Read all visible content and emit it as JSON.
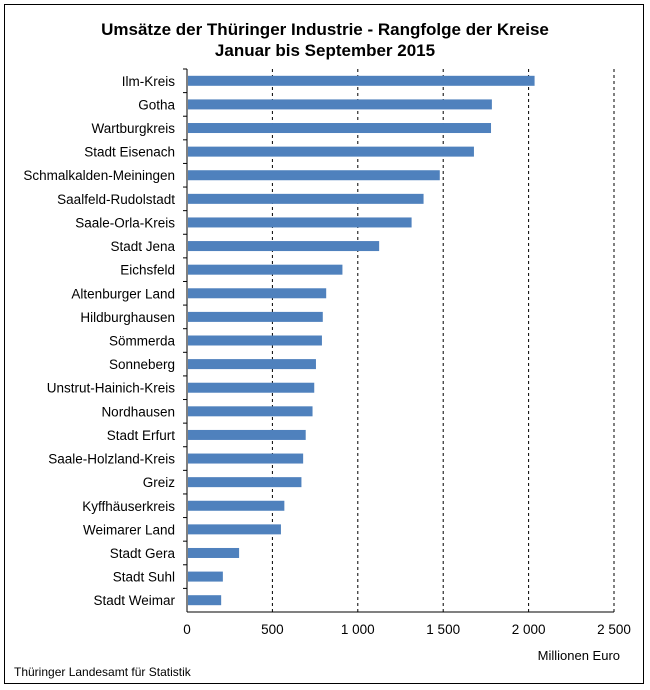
{
  "chart_data": {
    "type": "bar",
    "orientation": "horizontal",
    "title": "Umsätze der Thüringer Industrie - Rangfolge der Kreise",
    "subtitle": "Januar bis September 2015",
    "xlabel": "Millionen Euro",
    "ylabel": "",
    "xlim": [
      0,
      2500
    ],
    "xticks": [
      0,
      500,
      1000,
      1500,
      2000,
      2500
    ],
    "xtick_labels": [
      "0",
      "500",
      "1 000",
      "1 500",
      "2 000",
      "2 500"
    ],
    "grid": "vertical dashed",
    "bar_color": "#4f81bd",
    "categories": [
      "Ilm-Kreis",
      "Gotha",
      "Wartburgkreis",
      "Stadt Eisenach",
      "Schmalkalden-Meiningen",
      "Saalfeld-Rudolstadt",
      "Saale-Orla-Kreis",
      "Stadt Jena",
      "Eichsfeld",
      "Altenburger Land",
      "Hildburghausen",
      "Sömmerda",
      "Sonneberg",
      "Unstrut-Hainich-Kreis",
      "Nordhausen",
      "Stadt Erfurt",
      "Saale-Holzland-Kreis",
      "Greiz",
      "Kyffhäuserkreis",
      "Weimarer Land",
      "Stadt Gera",
      "Stadt Suhl",
      "Stadt Weimar"
    ],
    "values": [
      2035,
      1785,
      1780,
      1680,
      1480,
      1385,
      1315,
      1125,
      910,
      815,
      795,
      790,
      755,
      745,
      735,
      695,
      680,
      670,
      570,
      550,
      305,
      210,
      200
    ]
  },
  "footer": {
    "unit": "Millionen Euro",
    "source": "Thüringer Landesamt für Statistik"
  }
}
